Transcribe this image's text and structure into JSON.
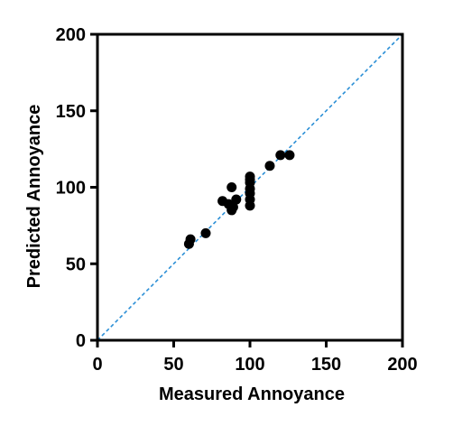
{
  "chart_data": {
    "type": "scatter",
    "title": "",
    "xlabel": "Measured Annoyance",
    "ylabel": "Predicted Annoyance",
    "xlim": [
      0,
      200
    ],
    "ylim": [
      0,
      200
    ],
    "xticks": [
      0,
      50,
      100,
      150,
      200
    ],
    "yticks": [
      0,
      50,
      100,
      150,
      200
    ],
    "grid": false,
    "legend": "none",
    "reference_line": {
      "from": [
        0,
        0
      ],
      "to": [
        200,
        200
      ],
      "style": "dashed",
      "color": "#2b8fd6"
    },
    "marker_color": "#000000",
    "series": [
      {
        "points": [
          [
            60,
            63
          ],
          [
            61,
            66
          ],
          [
            71,
            70
          ],
          [
            82,
            91
          ],
          [
            86,
            89
          ],
          [
            88,
            100
          ],
          [
            88,
            85
          ],
          [
            89,
            87
          ],
          [
            91,
            92
          ],
          [
            100,
            88
          ],
          [
            100,
            92
          ],
          [
            100,
            96
          ],
          [
            100,
            99
          ],
          [
            100,
            103
          ],
          [
            100,
            105
          ],
          [
            100,
            107
          ],
          [
            113,
            114
          ],
          [
            120,
            121
          ],
          [
            126,
            121
          ]
        ]
      }
    ]
  }
}
